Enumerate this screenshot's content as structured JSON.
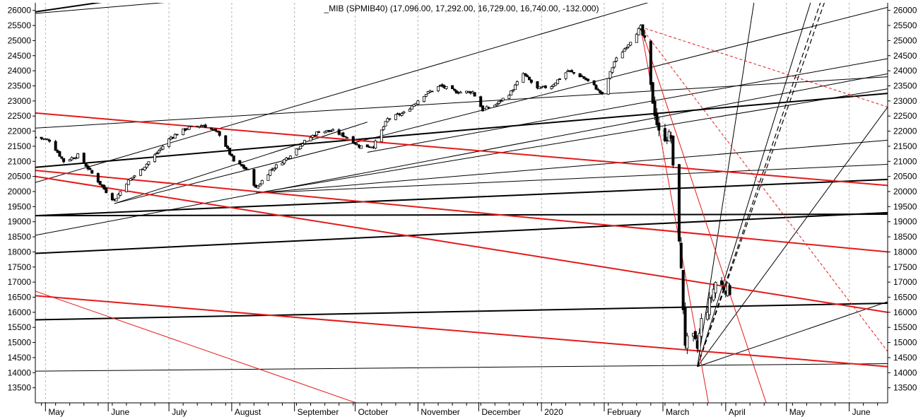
{
  "chart_data": {
    "type": "candlestick",
    "title": "_MIB (SPMIB40) (17,096.00, 17,292.00, 16,729.00, 16,740.00, -132.000)",
    "ylim": [
      13000,
      26250
    ],
    "y_ticks": [
      13500,
      14000,
      14500,
      15000,
      15500,
      16000,
      16500,
      17000,
      17500,
      18000,
      18500,
      19000,
      19500,
      20000,
      20500,
      21000,
      21500,
      22000,
      22500,
      23000,
      23500,
      24000,
      24500,
      25000,
      25500,
      26000
    ],
    "y_tick_labels": [
      "13500",
      "14000",
      "14500",
      "15000",
      "15500",
      "16000",
      "16500",
      "17000",
      "17500",
      "18000",
      "18500",
      "19000",
      "19500",
      "20000",
      "20500",
      "21000",
      "21500",
      "22000",
      "22500",
      "23000",
      "23500",
      "24000",
      "24500",
      "25000",
      "25500",
      "26000"
    ],
    "x_range": [
      "2019-04-26",
      "2020-06-20"
    ],
    "month_labels": [
      {
        "label": "May",
        "date": "2019-05-01"
      },
      {
        "label": "June",
        "date": "2019-06-01"
      },
      {
        "label": "July",
        "date": "2019-07-01"
      },
      {
        "label": "August",
        "date": "2019-08-01"
      },
      {
        "label": "September",
        "date": "2019-09-01"
      },
      {
        "label": "October",
        "date": "2019-10-01"
      },
      {
        "label": "November",
        "date": "2019-11-01"
      },
      {
        "label": "December",
        "date": "2019-12-01"
      },
      {
        "label": "2020",
        "date": "2020-01-01"
      },
      {
        "label": "February",
        "date": "2020-02-01"
      },
      {
        "label": "March",
        "date": "2020-03-01"
      },
      {
        "label": "April",
        "date": "2020-04-01"
      },
      {
        "label": "May",
        "date": "2020-05-01"
      },
      {
        "label": "June",
        "date": "2020-06-01"
      }
    ],
    "grid": true,
    "path": [
      [
        "2019-04-26",
        21800
      ],
      [
        "2019-05-03",
        21700
      ],
      [
        "2019-05-10",
        21000
      ],
      [
        "2019-05-17",
        21200
      ],
      [
        "2019-05-24",
        20600
      ],
      [
        "2019-05-31",
        20000
      ],
      [
        "2019-06-04",
        19700
      ],
      [
        "2019-06-10",
        20300
      ],
      [
        "2019-06-17",
        20700
      ],
      [
        "2019-06-24",
        21200
      ],
      [
        "2019-07-02",
        21800
      ],
      [
        "2019-07-10",
        22100
      ],
      [
        "2019-07-18",
        22200
      ],
      [
        "2019-07-26",
        21900
      ],
      [
        "2019-08-02",
        21000
      ],
      [
        "2019-08-09",
        20700
      ],
      [
        "2019-08-13",
        20100
      ],
      [
        "2019-08-20",
        20700
      ],
      [
        "2019-08-28",
        21100
      ],
      [
        "2019-09-05",
        21600
      ],
      [
        "2019-09-13",
        22000
      ],
      [
        "2019-09-20",
        22000
      ],
      [
        "2019-09-27",
        21800
      ],
      [
        "2019-10-03",
        21500
      ],
      [
        "2019-10-10",
        21500
      ],
      [
        "2019-10-17",
        22400
      ],
      [
        "2019-10-25",
        22600
      ],
      [
        "2019-11-04",
        23200
      ],
      [
        "2019-11-12",
        23500
      ],
      [
        "2019-11-20",
        23300
      ],
      [
        "2019-11-28",
        23300
      ],
      [
        "2019-12-03",
        22700
      ],
      [
        "2019-12-10",
        22900
      ],
      [
        "2019-12-17",
        23300
      ],
      [
        "2019-12-23",
        23900
      ],
      [
        "2019-12-30",
        23400
      ],
      [
        "2020-01-06",
        23500
      ],
      [
        "2020-01-14",
        24000
      ],
      [
        "2020-01-21",
        23800
      ],
      [
        "2020-01-27",
        23500
      ],
      [
        "2020-01-31",
        23200
      ],
      [
        "2020-02-06",
        24300
      ],
      [
        "2020-02-13",
        24900
      ],
      [
        "2020-02-19",
        25450
      ],
      [
        "2020-02-21",
        24900
      ],
      [
        "2020-02-24",
        23400
      ],
      [
        "2020-02-28",
        21900
      ],
      [
        "2020-03-05",
        21800
      ],
      [
        "2020-03-06",
        20700
      ],
      [
        "2020-03-09",
        18500
      ],
      [
        "2020-03-12",
        15000
      ],
      [
        "2020-03-16",
        15100
      ],
      [
        "2020-03-18",
        14800
      ],
      [
        "2020-03-20",
        15700
      ],
      [
        "2020-03-24",
        16300
      ],
      [
        "2020-03-27",
        17000
      ],
      [
        "2020-04-01",
        16800
      ],
      [
        "2020-04-03",
        16740
      ]
    ],
    "trendlines": {
      "black_thin": [
        [
          [
            "2019-04-26",
            20300
          ],
          [
            "2020-03-06",
            26500
          ]
        ],
        [
          [
            "2019-06-04",
            19600
          ],
          [
            "2020-06-20",
            26100
          ]
        ],
        [
          [
            "2019-06-04",
            19600
          ],
          [
            "2019-10-07",
            22300
          ]
        ],
        [
          [
            "2019-10-07",
            21300
          ],
          [
            "2020-06-20",
            24400
          ]
        ],
        [
          [
            "2019-08-13",
            19950
          ],
          [
            "2020-06-20",
            23400
          ]
        ],
        [
          [
            "2019-08-13",
            19950
          ],
          [
            "2020-06-20",
            21700
          ]
        ],
        [
          [
            "2019-08-13",
            19950
          ],
          [
            "2020-06-20",
            20900
          ]
        ],
        [
          [
            "2019-04-26",
            18550
          ],
          [
            "2020-06-20",
            23900
          ]
        ],
        [
          [
            "2019-04-26",
            22100
          ],
          [
            "2020-06-20",
            23800
          ]
        ],
        [
          [
            "2019-04-26",
            14050
          ],
          [
            "2020-06-20",
            14300
          ]
        ],
        [
          [
            "2020-03-18",
            14200
          ],
          [
            "2020-04-19",
            28000
          ]
        ],
        [
          [
            "2020-03-18",
            14200
          ],
          [
            "2020-05-21",
            28000
          ]
        ],
        [
          [
            "2020-03-18",
            14200
          ],
          [
            "2020-06-20",
            22800
          ]
        ],
        [
          [
            "2020-03-18",
            14200
          ],
          [
            "2020-06-20",
            16350
          ]
        ],
        [
          [
            "2019-04-26",
            25900
          ],
          [
            "2019-08-10",
            26500
          ]
        ]
      ],
      "black_thick": [
        [
          [
            "2019-04-26",
            19200
          ],
          [
            "2020-06-20",
            19250
          ]
        ],
        [
          [
            "2019-04-26",
            17950
          ],
          [
            "2020-06-20",
            19300
          ]
        ],
        [
          [
            "2019-04-26",
            15750
          ],
          [
            "2020-06-20",
            16300
          ]
        ],
        [
          [
            "2019-04-26",
            20800
          ],
          [
            "2020-06-20",
            23250
          ]
        ],
        [
          [
            "2019-04-26",
            19200
          ],
          [
            "2020-06-20",
            20400
          ]
        ],
        [
          [
            "2019-04-26",
            25950
          ],
          [
            "2019-06-21",
            26500
          ]
        ]
      ],
      "black_dashed": [
        [
          [
            "2020-03-18",
            14200
          ],
          [
            "2020-05-19",
            26500
          ]
        ],
        [
          [
            "2020-03-18",
            14200
          ],
          [
            "2020-05-21",
            26500
          ]
        ]
      ],
      "red_thin": [
        [
          [
            "2019-04-26",
            16700
          ],
          [
            "2019-10-10",
            12800
          ]
        ],
        [
          [
            "2020-02-19",
            25450
          ],
          [
            "2020-04-22",
            12800
          ]
        ],
        [
          [
            "2020-02-19",
            25450
          ],
          [
            "2020-03-24",
            12800
          ]
        ]
      ],
      "red_thick": [
        [
          [
            "2019-04-26",
            22600
          ],
          [
            "2020-06-20",
            20200
          ]
        ],
        [
          [
            "2019-04-26",
            20700
          ],
          [
            "2020-06-20",
            18000
          ]
        ],
        [
          [
            "2019-04-26",
            20500
          ],
          [
            "2020-06-20",
            16000
          ]
        ],
        [
          [
            "2019-04-26",
            16550
          ],
          [
            "2020-06-20",
            14200
          ]
        ]
      ],
      "red_dashed": [
        [
          [
            "2020-02-19",
            25450
          ],
          [
            "2020-06-20",
            22800
          ]
        ],
        [
          [
            "2020-02-19",
            25450
          ],
          [
            "2020-06-20",
            14700
          ]
        ]
      ]
    },
    "colors": {
      "up_candle": "#ffffff",
      "down_candle": "#000000",
      "black_line": "#000000",
      "red_line": "#e31a1a",
      "grid": "#b4b4b4"
    }
  }
}
